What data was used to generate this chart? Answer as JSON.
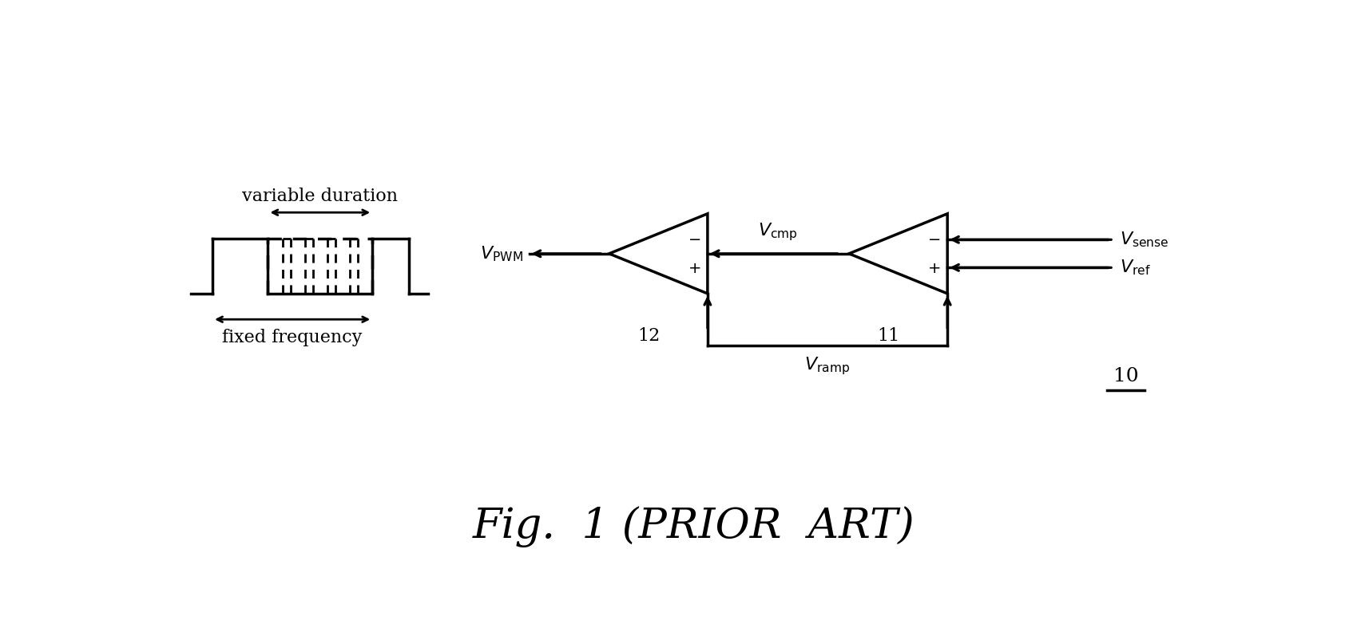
{
  "bg_color": "#ffffff",
  "line_color": "#000000",
  "fig_width": 16.94,
  "fig_height": 8.07,
  "title": "Fig.  1 (PRIOR  ART)",
  "title_fontsize": 38,
  "label_fontsize": 16,
  "lw": 2.0
}
